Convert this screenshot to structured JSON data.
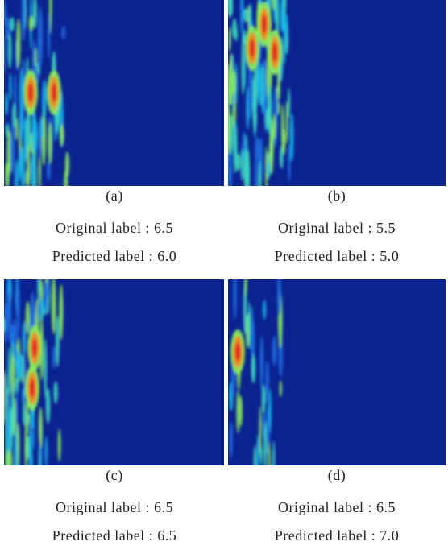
{
  "panels": [
    {
      "label": "(a)",
      "original": "Original label : 6.5",
      "predicted": "Predicted label : 6.0"
    },
    {
      "label": "(b)",
      "original": "Original label : 5.5",
      "predicted": "Predicted label : 5.0"
    },
    {
      "label": "(c)",
      "original": "Original label : 6.5",
      "predicted": "Predicted label : 6.5"
    },
    {
      "label": "(d)",
      "original": "Original label : 6.5",
      "predicted": "Predicted label : 7.0"
    }
  ]
}
